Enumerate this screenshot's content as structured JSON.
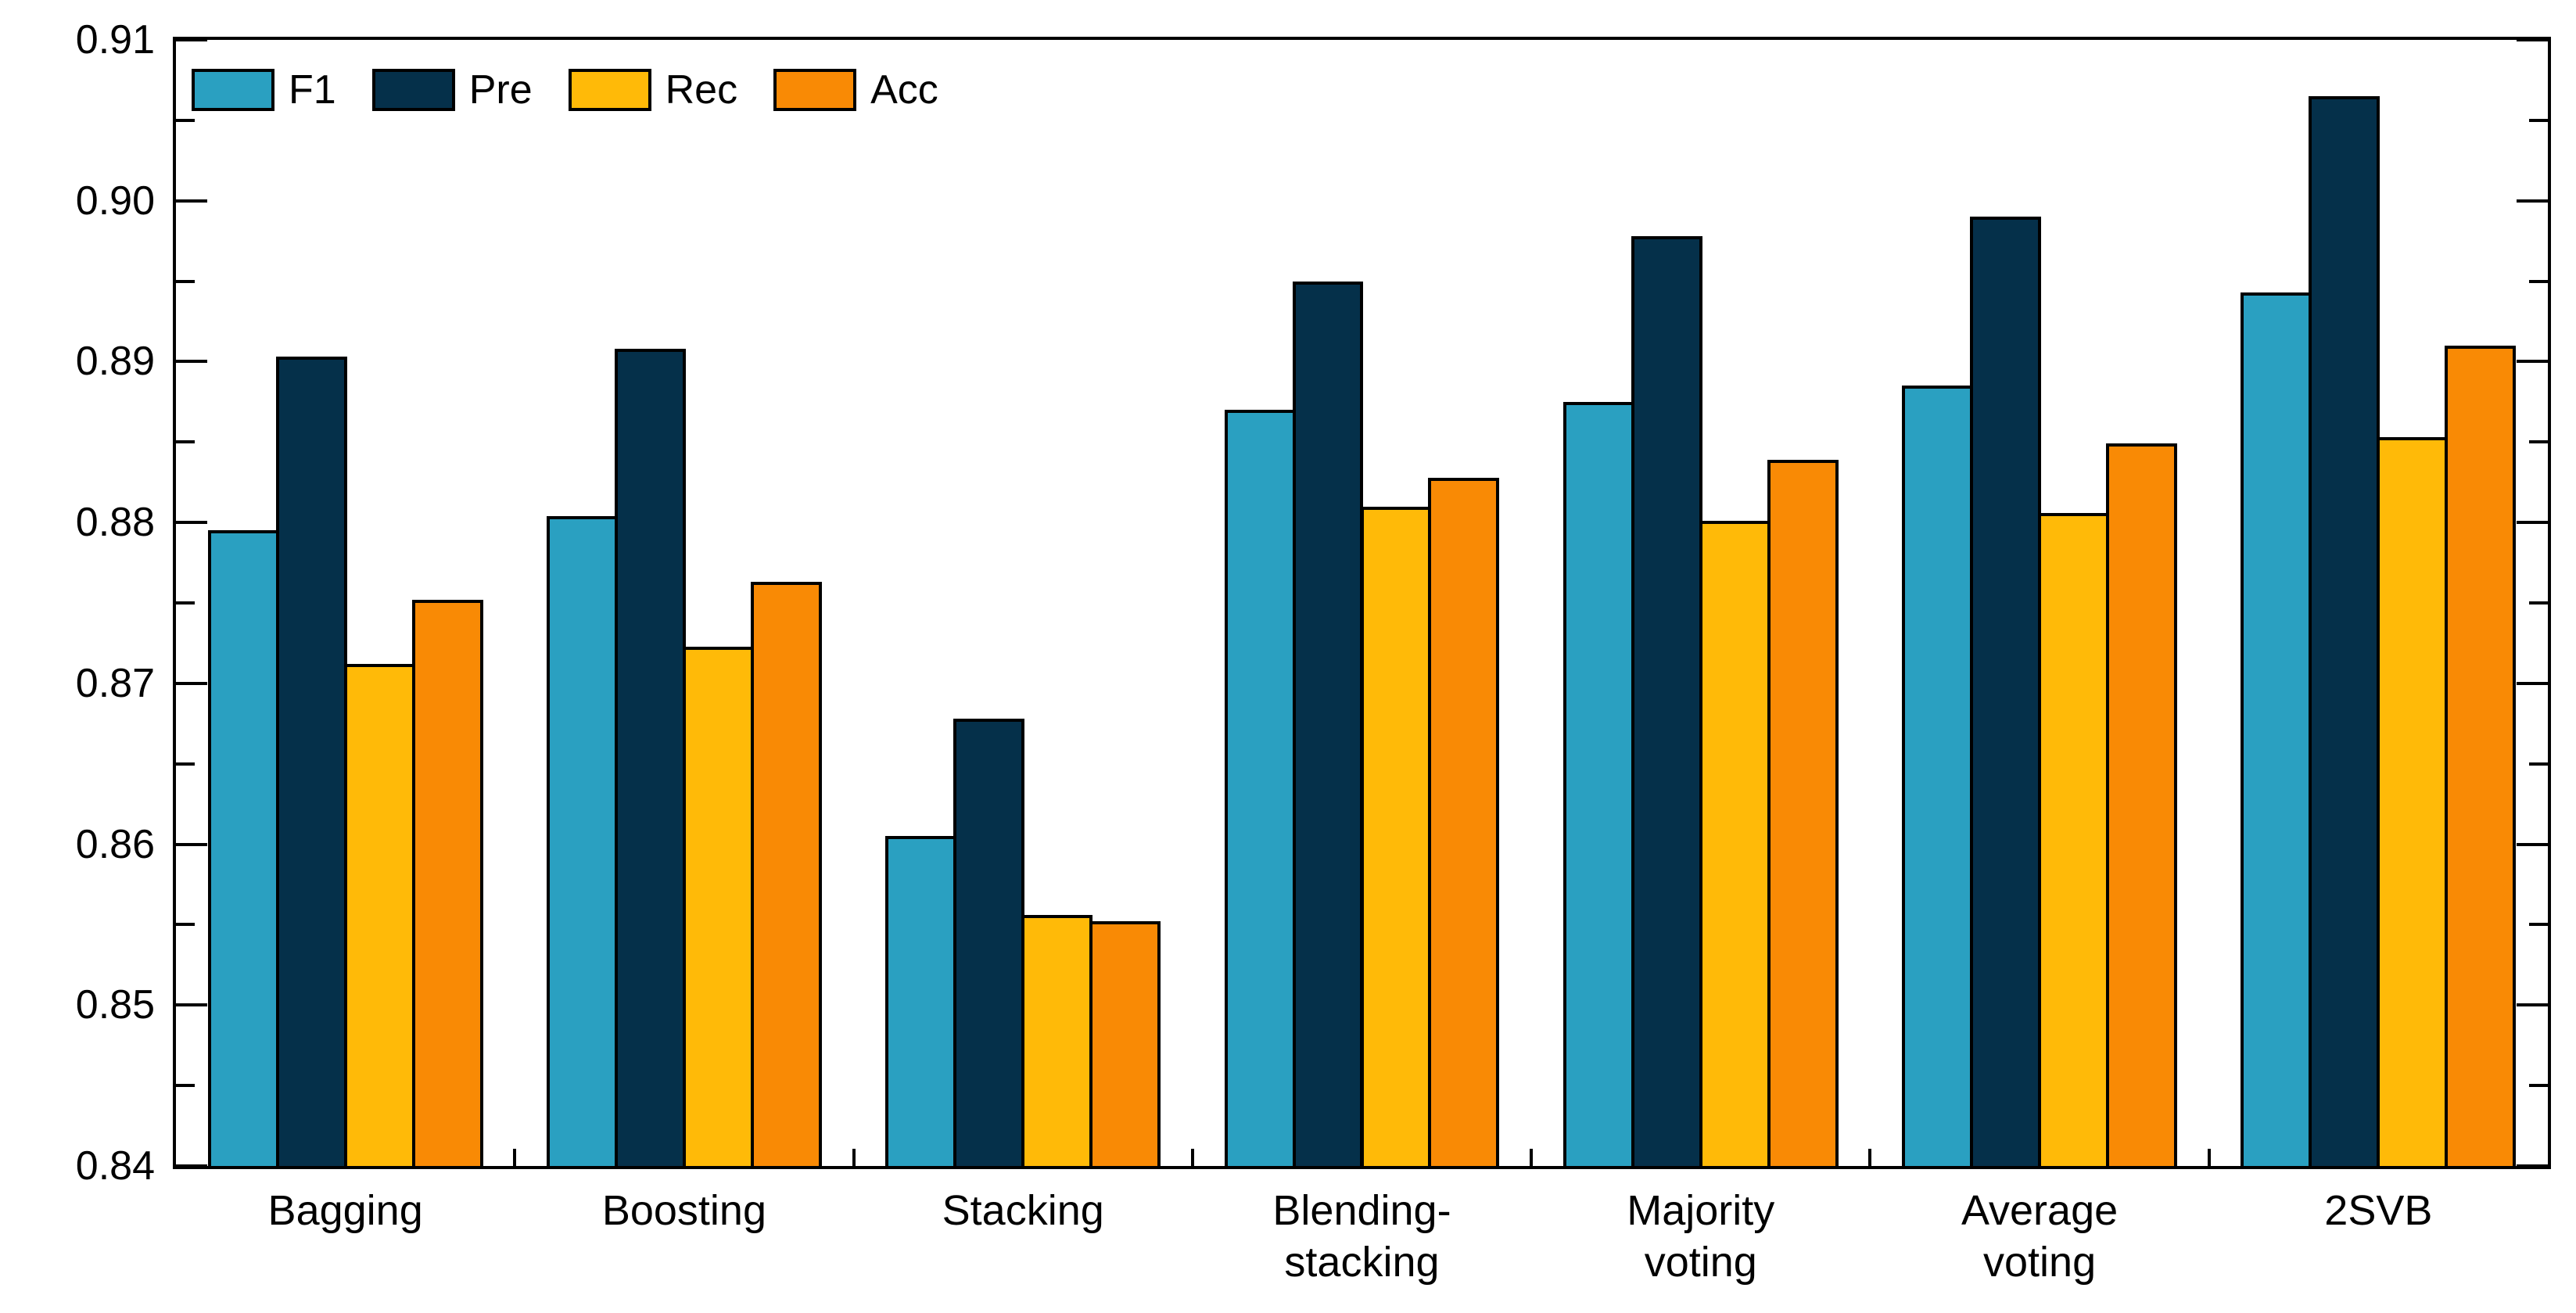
{
  "figure": {
    "background": "#FFFFFF",
    "axis_color": "#000000",
    "bar_edge_color": "#000000"
  },
  "chart_data": {
    "type": "bar",
    "title": "",
    "xlabel": "",
    "ylabel": "",
    "ylim": [
      0.84,
      0.91
    ],
    "ytick_step": 0.01,
    "yminor_step": 0.005,
    "ytick_labels": [
      "0.84",
      "0.85",
      "0.86",
      "0.87",
      "0.88",
      "0.89",
      "0.90",
      "0.91"
    ],
    "grid": false,
    "legend_position": "top-left-inside-horizontal",
    "categories": [
      "Bagging",
      "Boosting",
      "Stacking",
      "Blending-stacking",
      "Majority voting",
      "Average voting",
      "2SVB"
    ],
    "category_label_lines": [
      [
        "Bagging"
      ],
      [
        "Boosting"
      ],
      [
        "Stacking"
      ],
      [
        "Blending-",
        "stacking"
      ],
      [
        "Majority",
        "voting"
      ],
      [
        "Average",
        "voting"
      ],
      [
        "2SVB"
      ]
    ],
    "series": [
      {
        "name": "F1",
        "color": "#2AA0C1",
        "values": [
          0.8795,
          0.8804,
          0.8605,
          0.887,
          0.8875,
          0.8885,
          0.8943
        ]
      },
      {
        "name": "Pre",
        "color": "#05304A",
        "values": [
          0.8903,
          0.8908,
          0.8678,
          0.895,
          0.8978,
          0.899,
          0.9065
        ]
      },
      {
        "name": "Rec",
        "color": "#FFBA08",
        "values": [
          0.8712,
          0.8723,
          0.8556,
          0.881,
          0.8801,
          0.8806,
          0.8853
        ]
      },
      {
        "name": "Acc",
        "color": "#F98A05",
        "values": [
          0.8752,
          0.8763,
          0.8552,
          0.8828,
          0.8839,
          0.8849,
          0.891
        ]
      }
    ]
  }
}
